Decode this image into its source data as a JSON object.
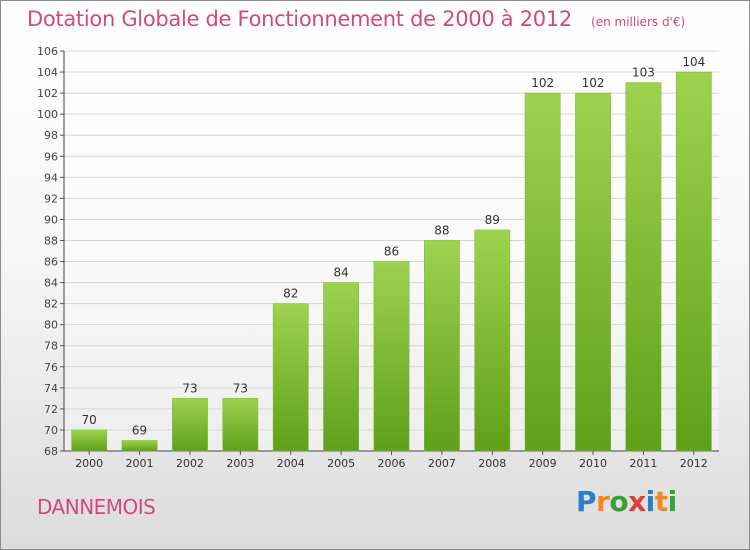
{
  "title": "Dotation Globale de Fonctionnement de 2000 à 2012",
  "unit": "(en milliers d'€)",
  "place": "DANNEMOIS",
  "logo": {
    "text": "Proxiti",
    "letter_colors": [
      "#2a7fc9",
      "#f08a1f",
      "#3a9e3a",
      "#e23b3b",
      "#2a7fc9",
      "#f08a1f",
      "#3a9e3a"
    ]
  },
  "colors": {
    "bar_top": "#9ed24f",
    "bar_bottom": "#5fa019",
    "text": "#d2487f",
    "grid": "#d6d6d6"
  },
  "chart_data": {
    "type": "bar",
    "categories": [
      "2000",
      "2001",
      "2002",
      "2003",
      "2004",
      "2005",
      "2006",
      "2007",
      "2008",
      "2009",
      "2010",
      "2011",
      "2012"
    ],
    "values": [
      70,
      69,
      73,
      73,
      82,
      84,
      86,
      88,
      89,
      102,
      102,
      103,
      104
    ],
    "ylim": [
      68,
      106
    ],
    "yticks": [
      68,
      70,
      72,
      74,
      76,
      78,
      80,
      82,
      84,
      86,
      88,
      90,
      92,
      94,
      96,
      98,
      100,
      102,
      104,
      106
    ],
    "grid": true,
    "data_labels": true
  }
}
